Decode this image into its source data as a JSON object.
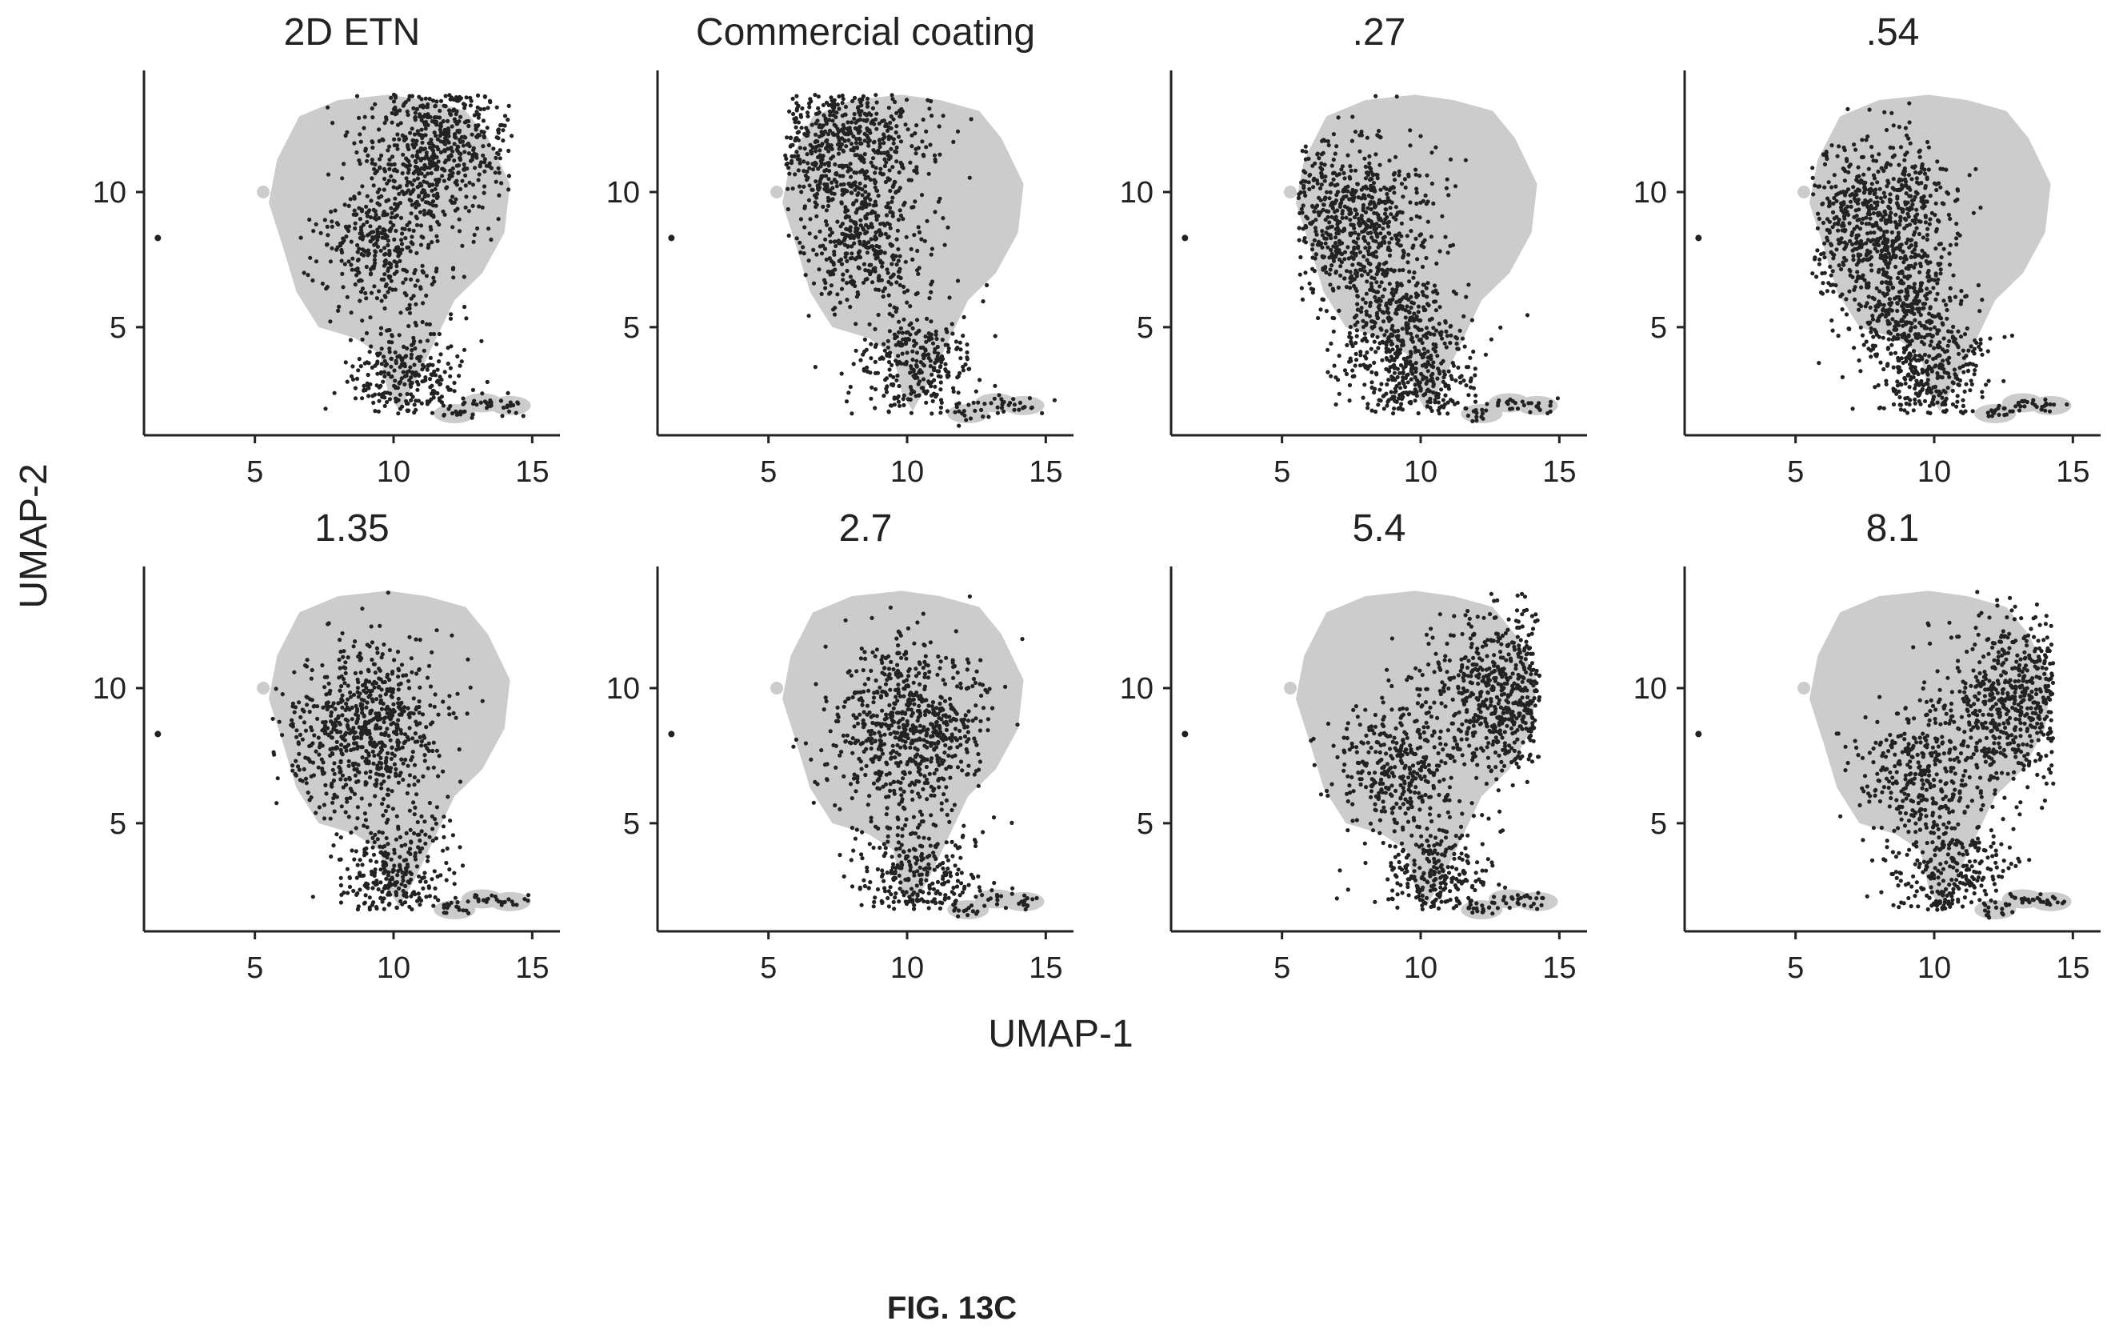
{
  "figure": {
    "caption": "FIG. 13C",
    "x_axis_title": "UMAP-1",
    "y_axis_title": "UMAP-2"
  },
  "colors": {
    "background_cells": "#cccccc",
    "highlighted_cells": "#222222",
    "axis": "#222222"
  },
  "chart_data": [
    {
      "type": "scatter",
      "title": "2D ETN",
      "xlim": [
        1,
        16
      ],
      "ylim": [
        1,
        14.5
      ],
      "xticks": [
        5,
        10,
        15
      ],
      "yticks": [
        5,
        10
      ],
      "grid": false,
      "highlight": "dense cluster upper right (UMAP-1 about 10.5-12.5, UMAP-2 about 10.5-13), scattered elsewhere",
      "series": [
        {
          "values_note": "highlighted cells",
          "centers": [
            [
              11.5,
              12.0
            ],
            [
              9.5,
              8.0
            ],
            [
              10.5,
              3.0
            ]
          ]
        }
      ]
    },
    {
      "type": "scatter",
      "title": "Commercial coating",
      "xlim": [
        1,
        16
      ],
      "ylim": [
        1,
        14.5
      ],
      "xticks": [
        5,
        10,
        15
      ],
      "yticks": [
        5,
        10
      ],
      "grid": false,
      "highlight": "dense cluster upper left (UMAP-1 about 6-9, UMAP-2 about 10-13)",
      "series": [
        {
          "values_note": "highlighted cells",
          "centers": [
            [
              7.8,
              11.8
            ],
            [
              8.5,
              8.0
            ],
            [
              10.3,
              3.5
            ]
          ]
        }
      ]
    },
    {
      "type": "scatter",
      "title": ".27",
      "xlim": [
        1,
        16
      ],
      "ylim": [
        1,
        14.5
      ],
      "xticks": [
        5,
        10,
        15
      ],
      "yticks": [
        5,
        10
      ],
      "grid": false,
      "highlight": "left and lower-middle region",
      "series": [
        {
          "values_note": "highlighted cells",
          "centers": [
            [
              7.5,
              9.0
            ],
            [
              9.0,
              5.0
            ],
            [
              10.0,
              3.0
            ]
          ]
        }
      ]
    },
    {
      "type": "scatter",
      "title": ".54",
      "xlim": [
        1,
        16
      ],
      "ylim": [
        1,
        14.5
      ],
      "xticks": [
        5,
        10,
        15
      ],
      "yticks": [
        5,
        10
      ],
      "grid": false,
      "highlight": "broad left and middle region",
      "series": [
        {
          "values_note": "highlighted cells",
          "centers": [
            [
              8.0,
              9.0
            ],
            [
              9.0,
              5.5
            ],
            [
              10.0,
              3.0
            ]
          ]
        }
      ]
    },
    {
      "type": "scatter",
      "title": "1.35",
      "xlim": [
        1,
        16
      ],
      "ylim": [
        1,
        14.5
      ],
      "xticks": [
        5,
        10,
        15
      ],
      "yticks": [
        5,
        10
      ],
      "grid": false,
      "highlight": "spread across most of the main cluster",
      "series": [
        {
          "values_note": "highlighted cells",
          "centers": [
            [
              9.0,
              8.5
            ],
            [
              10.0,
              3.0
            ]
          ]
        }
      ]
    },
    {
      "type": "scatter",
      "title": "2.7",
      "xlim": [
        1,
        16
      ],
      "ylim": [
        1,
        14.5
      ],
      "xticks": [
        5,
        10,
        15
      ],
      "yticks": [
        5,
        10
      ],
      "grid": false,
      "highlight": "spread across main cluster, denser center-right",
      "series": [
        {
          "values_note": "highlighted cells",
          "centers": [
            [
              10.0,
              8.5
            ],
            [
              10.5,
              3.0
            ]
          ]
        }
      ]
    },
    {
      "type": "scatter",
      "title": "5.4",
      "xlim": [
        1,
        16
      ],
      "ylim": [
        1,
        14.5
      ],
      "xticks": [
        5,
        10,
        15
      ],
      "yticks": [
        5,
        10
      ],
      "grid": false,
      "highlight": "dense cluster right (UMAP-1 about 12-14, UMAP-2 about 8.5-11) plus lower-middle",
      "series": [
        {
          "values_note": "highlighted cells",
          "centers": [
            [
              13.0,
              9.8
            ],
            [
              9.0,
              7.0
            ],
            [
              10.5,
              3.0
            ]
          ]
        }
      ]
    },
    {
      "type": "scatter",
      "title": "8.1",
      "xlim": [
        1,
        16
      ],
      "ylim": [
        1,
        14.5
      ],
      "xticks": [
        5,
        10,
        15
      ],
      "yticks": [
        5,
        10
      ],
      "grid": false,
      "highlight": "dense cluster right (UMAP-1 about 12-14.5, UMAP-2 about 8-11) plus middle",
      "series": [
        {
          "values_note": "highlighted cells",
          "centers": [
            [
              13.2,
              9.5
            ],
            [
              9.5,
              7.0
            ],
            [
              10.5,
              3.0
            ]
          ]
        }
      ]
    }
  ]
}
